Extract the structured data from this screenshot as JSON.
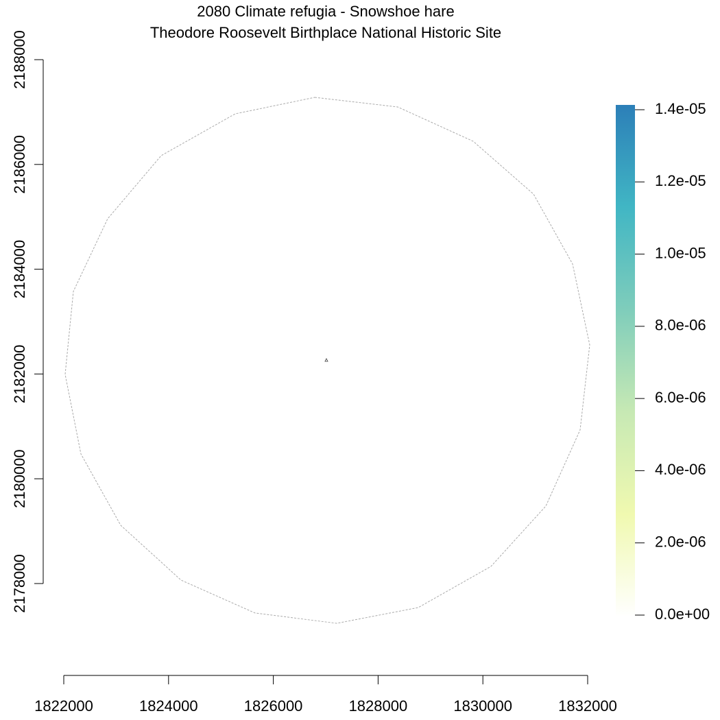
{
  "chart_data": {
    "type": "raster-map",
    "title": "2080 Climate refugia - Snowshoe hare",
    "subtitle": "Theodore Roosevelt Birthplace National Historic Site",
    "xlim": [
      1822000,
      1832000
    ],
    "xticks": [
      1822000,
      1824000,
      1826000,
      1828000,
      1830000,
      1832000
    ],
    "ylim": [
      2178000,
      2188000
    ],
    "yticks": [
      2178000,
      2180000,
      2182000,
      2184000,
      2186000,
      2188000
    ],
    "legend": {
      "lim": [
        0,
        1.4e-05
      ],
      "colors": [
        "#ffffff",
        "#f0f9b0",
        "#c7e9b4",
        "#7fcdbb",
        "#41b6c4",
        "#2c7fb8"
      ],
      "ticks": [
        {
          "value": 0,
          "label": "0.0e+00"
        },
        {
          "value": 2e-06,
          "label": "2.0e-06"
        },
        {
          "value": 4e-06,
          "label": "4.0e-06"
        },
        {
          "value": 6e-06,
          "label": "6.0e-06"
        },
        {
          "value": 8e-06,
          "label": "8.0e-06"
        },
        {
          "value": 1e-05,
          "label": "1.0e-05"
        },
        {
          "value": 1.2e-05,
          "label": "1.2e-05"
        },
        {
          "value": 1.4e-05,
          "label": "1.4e-05"
        }
      ]
    }
  }
}
